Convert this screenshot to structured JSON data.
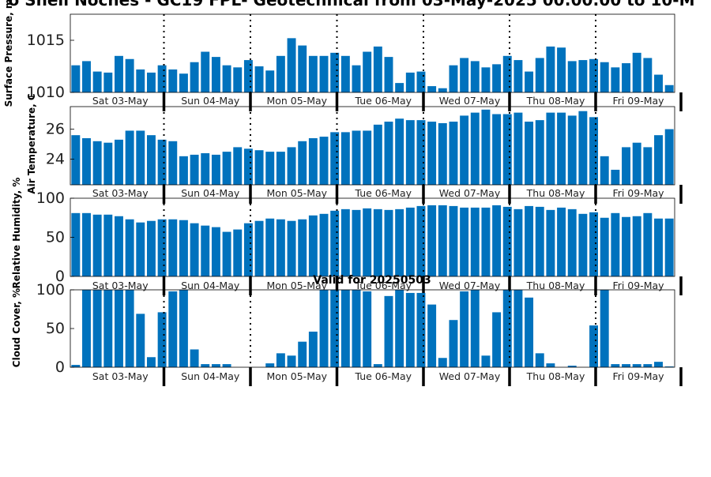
{
  "title": "o Shell Noches - GC19 FPL- Geotechnical from 03-May-2025 00:00:00 to 10-M",
  "valid_label": "Valid for 20250503",
  "colors": {
    "bar": "#0072BD",
    "axis": "#000000",
    "divider": "#000000"
  },
  "day_labels": [
    "Sat 03-May",
    "Sun 04-May",
    "Mon 05-May",
    "Tue 06-May",
    "Wed 07-May",
    "Thu 08-May",
    "Fri 09-May"
  ],
  "chart_data": [
    {
      "type": "bar",
      "ylabel": "Surface Pressure, m",
      "ylim": [
        1010,
        1017.5
      ],
      "yticks": [
        1010,
        1015
      ],
      "grid": false,
      "values": [
        1012.6,
        1013.0,
        1012.0,
        1011.9,
        1013.5,
        1013.2,
        1012.2,
        1011.9,
        1012.6,
        1012.2,
        1011.8,
        1012.9,
        1013.9,
        1013.4,
        1012.6,
        1012.4,
        1013.1,
        1012.5,
        1012.1,
        1013.5,
        1015.2,
        1014.5,
        1013.5,
        1013.5,
        1013.8,
        1013.5,
        1012.6,
        1013.9,
        1014.4,
        1013.4,
        1010.9,
        1011.9,
        1012.0,
        1010.6,
        1010.4,
        1012.6,
        1013.3,
        1013.0,
        1012.4,
        1012.7,
        1013.5,
        1013.1,
        1012.0,
        1013.3,
        1014.4,
        1014.3,
        1013.0,
        1013.1,
        1013.2,
        1012.9,
        1012.4,
        1012.8,
        1013.8,
        1013.3,
        1011.7,
        1010.7
      ]
    },
    {
      "type": "bar",
      "ylabel": "Air Temperature, C",
      "ylim": [
        22.3,
        27.5
      ],
      "yticks": [
        24,
        26
      ],
      "grid": false,
      "values": [
        25.6,
        25.4,
        25.2,
        25.1,
        25.3,
        25.9,
        25.9,
        25.6,
        25.3,
        25.2,
        24.2,
        24.3,
        24.4,
        24.3,
        24.5,
        24.8,
        24.7,
        24.6,
        24.5,
        24.5,
        24.8,
        25.2,
        25.4,
        25.5,
        25.8,
        25.8,
        25.9,
        25.9,
        26.3,
        26.5,
        26.7,
        26.6,
        26.6,
        26.5,
        26.4,
        26.5,
        26.9,
        27.1,
        27.3,
        27.0,
        27.0,
        27.1,
        26.5,
        26.6,
        27.1,
        27.1,
        26.9,
        27.2,
        26.8,
        24.2,
        23.3,
        24.8,
        25.1,
        24.8,
        25.6,
        26.0
      ]
    },
    {
      "type": "bar",
      "ylabel": "Relative Humidity, %",
      "ylim": [
        0,
        100
      ],
      "yticks": [
        0,
        50,
        100
      ],
      "grid": false,
      "values": [
        81,
        81,
        79,
        79,
        77,
        73,
        69,
        71,
        73,
        73,
        72,
        68,
        65,
        63,
        57,
        60,
        68,
        71,
        74,
        73,
        71,
        73,
        78,
        80,
        84,
        86,
        85,
        87,
        86,
        85,
        86,
        88,
        90,
        91,
        91,
        90,
        88,
        88,
        88,
        91,
        89,
        86,
        90,
        89,
        85,
        88,
        86,
        80,
        82,
        75,
        81,
        76,
        77,
        81,
        74,
        74
      ]
    },
    {
      "type": "bar",
      "ylabel": "Cloud Cover, %",
      "ylim": [
        0,
        100
      ],
      "yticks": [
        0,
        50,
        100
      ],
      "grid": false,
      "values": [
        3,
        100,
        100,
        100,
        100,
        100,
        69,
        13,
        71,
        98,
        100,
        23,
        4,
        4,
        4,
        0,
        0,
        0,
        5,
        18,
        15,
        33,
        46,
        100,
        100,
        100,
        100,
        98,
        4,
        92,
        100,
        96,
        96,
        81,
        12,
        61,
        98,
        100,
        15,
        71,
        100,
        100,
        90,
        18,
        5,
        0,
        2,
        0,
        54,
        100,
        4,
        4,
        4,
        4,
        7,
        1
      ]
    }
  ]
}
